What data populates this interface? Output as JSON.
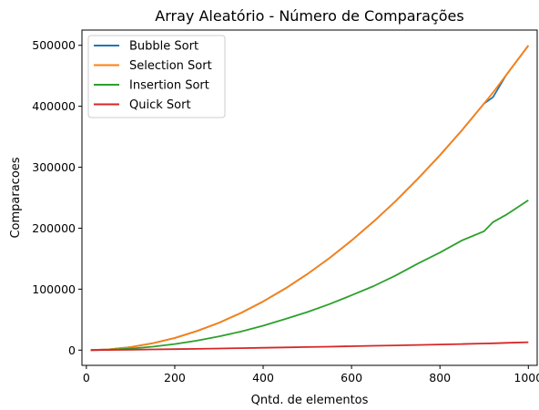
{
  "chart_data": {
    "type": "line",
    "title": "Array Aleatório - Número de Comparações",
    "xlabel": "Qntd. de elementos",
    "ylabel": "Comparacoes",
    "xlim": [
      -10,
      1020
    ],
    "ylim": [
      -25000,
      525000
    ],
    "xticks": [
      {
        "value": 0,
        "label": "0"
      },
      {
        "value": 200,
        "label": "200"
      },
      {
        "value": 400,
        "label": "400"
      },
      {
        "value": 600,
        "label": "600"
      },
      {
        "value": 800,
        "label": "800"
      },
      {
        "value": 1000,
        "label": "1000"
      }
    ],
    "yticks": [
      {
        "value": 0,
        "label": "0"
      },
      {
        "value": 100000,
        "label": "100000"
      },
      {
        "value": 200000,
        "label": "200000"
      },
      {
        "value": 300000,
        "label": "300000"
      },
      {
        "value": 400000,
        "label": "400000"
      },
      {
        "value": 500000,
        "label": "500000"
      }
    ],
    "grid": false,
    "legend_position": "top-left",
    "x": [
      10,
      50,
      100,
      150,
      200,
      250,
      300,
      350,
      400,
      450,
      500,
      550,
      600,
      650,
      700,
      750,
      800,
      850,
      900,
      920,
      950,
      1000
    ],
    "series": [
      {
        "name": "Bubble Sort",
        "color": "#1f77b4",
        "values": [
          45,
          1225,
          4950,
          11175,
          19900,
          31125,
          44850,
          61075,
          79800,
          101025,
          124750,
          150975,
          179700,
          210925,
          244650,
          280875,
          319600,
          360825,
          404550,
          415000,
          451275,
          499500
        ]
      },
      {
        "name": "Selection Sort",
        "color": "#ff7f0e",
        "values": [
          45,
          1225,
          4950,
          11175,
          19900,
          31125,
          44850,
          61075,
          79800,
          101025,
          124750,
          150975,
          179700,
          210925,
          244650,
          280875,
          319600,
          360825,
          404550,
          422600,
          451275,
          499500
        ]
      },
      {
        "name": "Insertion Sort",
        "color": "#2ca02c",
        "values": [
          25,
          600,
          2500,
          5600,
          10000,
          15500,
          22500,
          30500,
          40000,
          51000,
          62500,
          75500,
          90000,
          105000,
          122500,
          142000,
          160000,
          180000,
          195000,
          210000,
          222000,
          246000
        ]
      },
      {
        "name": "Quick Sort",
        "color": "#d62728",
        "values": [
          30,
          300,
          700,
          1100,
          1600,
          2100,
          2700,
          3300,
          3900,
          4500,
          5100,
          5700,
          6400,
          7100,
          7800,
          8500,
          9300,
          10000,
          10800,
          11200,
          11900,
          13000
        ]
      }
    ]
  }
}
